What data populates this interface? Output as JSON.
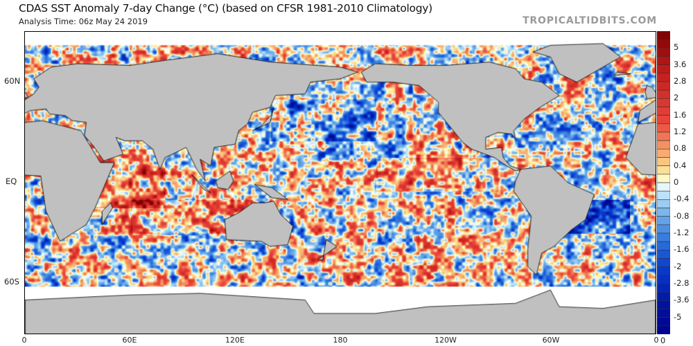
{
  "header": {
    "title": "CDAS SST Anomaly 7-day Change (°C) (based on CFSR 1981-2010 Climatology)",
    "subtitle": "Analysis Time: 06z May 24 2019",
    "brand": "TROPICALTIDBITS.COM"
  },
  "map": {
    "projection": "equirectangular, 0° to 360° longitude centered on 180",
    "land_color": "#c0c0c0",
    "x_labels": [
      "0",
      "60E",
      "120E",
      "180",
      "120W",
      "60W",
      "0"
    ],
    "y_labels": [
      "60N",
      "EQ",
      "60S"
    ]
  },
  "colorbar": {
    "labels": [
      "5",
      "3.6",
      "2.8",
      "2",
      "1.6",
      "1.2",
      "0.8",
      "0.4",
      "0",
      "-0.4",
      "-0.8",
      "-1.2",
      "-1.6",
      "-2",
      "-2.8",
      "-3.6",
      "-5"
    ],
    "bottom_label": "0",
    "warm_end": "#7a0000",
    "cold_end": "#00008c"
  }
}
